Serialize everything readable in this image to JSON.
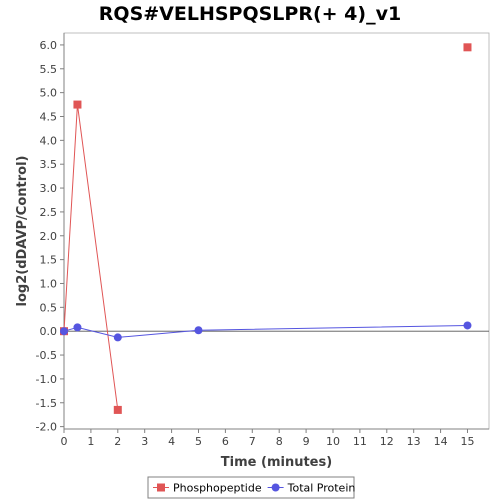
{
  "chart_data": {
    "type": "line",
    "title": "RQS#VELHSPQSLPR(+ 4)_v1",
    "xlabel": "Time (minutes)",
    "ylabel": "log2(dDAVP/Control)",
    "xlim": [
      0,
      15.8
    ],
    "ylim": [
      -2.05,
      6.25
    ],
    "xticks": [
      0,
      1,
      2,
      3,
      4,
      5,
      6,
      7,
      8,
      9,
      10,
      11,
      12,
      13,
      14,
      15
    ],
    "yticks": [
      -2.0,
      -1.5,
      -1.0,
      -0.5,
      0.0,
      0.5,
      1.0,
      1.5,
      2.0,
      2.5,
      3.0,
      3.5,
      4.0,
      4.5,
      5.0,
      5.5,
      6.0
    ],
    "grid": false,
    "legend": "bottom",
    "series": [
      {
        "name": "Phosphopeptide",
        "color": "#e05555",
        "marker": "square",
        "x": [
          0,
          0.5,
          2,
          15
        ],
        "y": [
          0.0,
          4.75,
          -1.65,
          5.95
        ],
        "connected_points": 3
      },
      {
        "name": "Total Protein",
        "color": "#5555e0",
        "marker": "circle",
        "x": [
          0,
          0.5,
          2,
          5,
          15
        ],
        "y": [
          0.0,
          0.08,
          -0.13,
          0.02,
          0.12
        ],
        "connected_points": 5
      }
    ]
  }
}
